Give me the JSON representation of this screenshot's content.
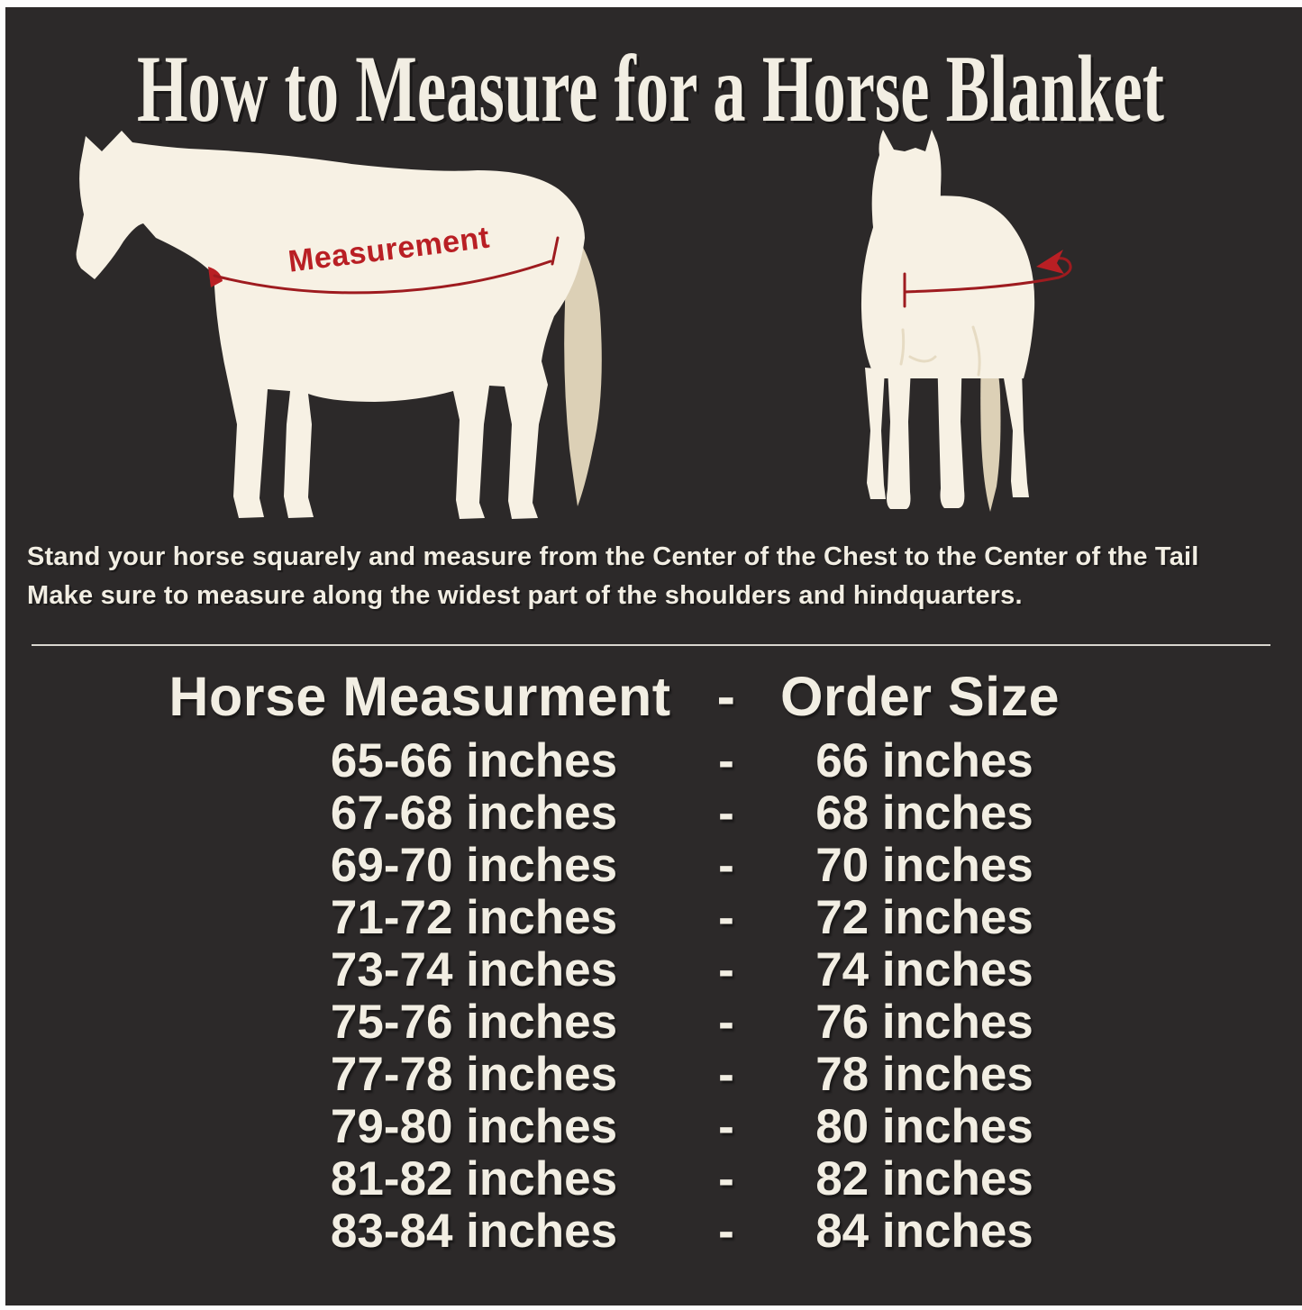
{
  "title": "How to Measure for a Horse Blanket",
  "colors": {
    "bg": "#2c2929",
    "cream": "#f2eee3",
    "horse": "#f7f1e4",
    "horse-shade": "#dcd0b6",
    "red": "#b91f24",
    "red-dark": "#9e1b1f",
    "frame": "#fdfdfd",
    "divider": "#d9d6cf"
  },
  "diagram": {
    "measurement_label": "Measurement"
  },
  "instructions": {
    "line1": "Stand your horse squarely and measure from the Center of the Chest to the Center of the Tail",
    "line2": "Make sure to measure along the widest part of the shoulders and hindquarters."
  },
  "size_table": {
    "header": {
      "measurement_col": "Horse Measurment",
      "separator": "-",
      "size_col": "Order Size"
    },
    "row_separator": "-",
    "rows": [
      {
        "measurement": "65-66 inches",
        "size": "66 inches"
      },
      {
        "measurement": "67-68 inches",
        "size": "68 inches"
      },
      {
        "measurement": "69-70 inches",
        "size": "70 inches"
      },
      {
        "measurement": "71-72 inches",
        "size": "72 inches"
      },
      {
        "measurement": "73-74 inches",
        "size": "74 inches"
      },
      {
        "measurement": "75-76 inches",
        "size": "76 inches"
      },
      {
        "measurement": "77-78 inches",
        "size": "78 inches"
      },
      {
        "measurement": "79-80 inches",
        "size": "80 inches"
      },
      {
        "measurement": "81-82 inches",
        "size": "82 inches"
      },
      {
        "measurement": "83-84 inches",
        "size": "84 inches"
      }
    ]
  }
}
